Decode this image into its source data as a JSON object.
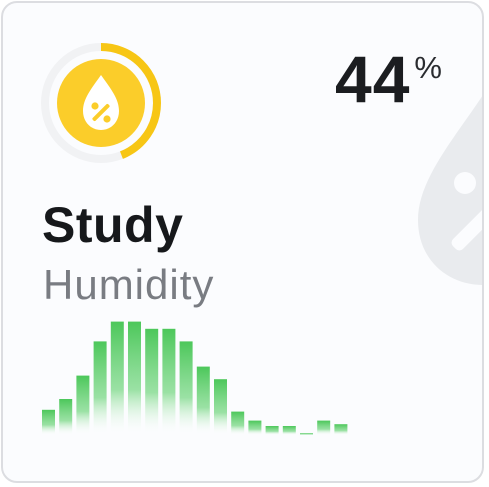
{
  "card": {
    "name": "Study",
    "label": "Humidity",
    "value": "44",
    "unit": "%",
    "icon": "water-percent-icon",
    "background_icon": "water-percent-icon",
    "accent_color": "#fbcd2a",
    "ring_color": "#f7c615",
    "ring_track_color": "#f1f2f4",
    "ring_fraction": 0.44
  },
  "chart_data": {
    "type": "bar",
    "values": [
      14,
      20,
      33,
      52,
      63,
      63,
      59,
      59,
      52,
      38,
      31,
      13,
      8,
      5,
      5,
      1,
      8,
      6
    ],
    "ylim": [
      0,
      70
    ],
    "grid": false,
    "legend": "none",
    "color": "#4cc75a"
  }
}
